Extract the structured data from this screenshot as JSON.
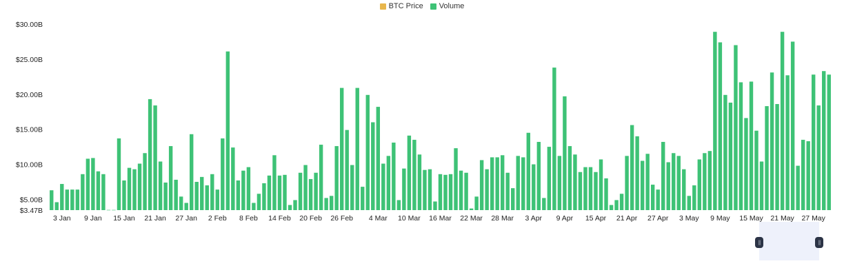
{
  "legend": [
    {
      "label": "BTC Price",
      "color": "#e8b64c"
    },
    {
      "label": "Volume",
      "color": "#3ec276"
    }
  ],
  "chart_data": {
    "type": "bar",
    "title": "",
    "xlabel": "",
    "ylabel": "",
    "ylim": [
      3.47,
      30
    ],
    "yticks": [
      {
        "value": 30,
        "label": "$30.00B"
      },
      {
        "value": 25,
        "label": "$25.00B"
      },
      {
        "value": 20,
        "label": "$20.00B"
      },
      {
        "value": 15,
        "label": "$15.00B"
      },
      {
        "value": 10,
        "label": "$10.00B"
      },
      {
        "value": 5,
        "label": "$5.00B"
      },
      {
        "value": 3.47,
        "label": "$3.47B"
      }
    ],
    "xticks": [
      {
        "index": 2,
        "label": "3 Jan"
      },
      {
        "index": 8,
        "label": "9 Jan"
      },
      {
        "index": 14,
        "label": "15 Jan"
      },
      {
        "index": 20,
        "label": "21 Jan"
      },
      {
        "index": 26,
        "label": "27 Jan"
      },
      {
        "index": 32,
        "label": "2 Feb"
      },
      {
        "index": 38,
        "label": "8 Feb"
      },
      {
        "index": 44,
        "label": "14 Feb"
      },
      {
        "index": 50,
        "label": "20 Feb"
      },
      {
        "index": 56,
        "label": "26 Feb"
      },
      {
        "index": 63,
        "label": "4 Mar"
      },
      {
        "index": 69,
        "label": "10 Mar"
      },
      {
        "index": 75,
        "label": "16 Mar"
      },
      {
        "index": 81,
        "label": "22 Mar"
      },
      {
        "index": 87,
        "label": "28 Mar"
      },
      {
        "index": 93,
        "label": "3 Apr"
      },
      {
        "index": 99,
        "label": "9 Apr"
      },
      {
        "index": 105,
        "label": "15 Apr"
      },
      {
        "index": 111,
        "label": "21 Apr"
      },
      {
        "index": 117,
        "label": "27 Apr"
      },
      {
        "index": 123,
        "label": "3 May"
      },
      {
        "index": 129,
        "label": "9 May"
      },
      {
        "index": 135,
        "label": "15 May"
      },
      {
        "index": 141,
        "label": "21 May"
      },
      {
        "index": 147,
        "label": "27 May"
      }
    ],
    "series": [
      {
        "name": "Volume",
        "color": "#3ec276",
        "values": [
          6.3,
          4.6,
          7.2,
          6.4,
          6.4,
          6.4,
          8.6,
          10.8,
          10.9,
          9.0,
          8.6,
          3.5,
          3.5,
          13.7,
          7.7,
          9.5,
          9.3,
          10.1,
          11.6,
          19.3,
          18.4,
          10.4,
          7.4,
          12.6,
          7.8,
          5.4,
          4.5,
          14.3,
          7.5,
          8.2,
          7.0,
          8.6,
          6.4,
          13.7,
          26.1,
          12.4,
          7.7,
          9.1,
          9.6,
          4.5,
          5.8,
          7.3,
          8.4,
          11.3,
          8.4,
          8.5,
          4.2,
          4.9,
          8.8,
          9.9,
          7.9,
          8.8,
          12.8,
          5.2,
          5.5,
          12.6,
          20.9,
          14.9,
          9.9,
          20.9,
          6.8,
          19.9,
          16.0,
          18.2,
          10.1,
          11.2,
          13.1,
          4.9,
          9.4,
          14.1,
          13.5,
          11.4,
          9.2,
          9.3,
          4.7,
          8.6,
          8.5,
          8.6,
          12.3,
          9.1,
          8.8,
          3.7,
          5.4,
          10.6,
          9.3,
          11.0,
          11.0,
          11.3,
          8.8,
          6.6,
          11.2,
          11.0,
          14.5,
          10.0,
          13.2,
          5.2,
          12.5,
          23.8,
          11.2,
          19.7,
          12.6,
          11.4,
          8.9,
          9.6,
          9.6,
          8.9,
          10.7,
          8.0,
          4.2,
          4.9,
          5.8,
          11.2,
          15.6,
          14.0,
          10.5,
          11.5,
          7.1,
          6.4,
          13.2,
          10.3,
          11.6,
          11.2,
          9.3,
          5.5,
          7.0,
          10.7,
          11.6,
          11.9,
          28.9,
          27.4,
          19.9,
          18.8,
          27.0,
          21.7,
          16.6,
          21.8,
          14.8,
          10.4,
          18.3,
          23.1,
          18.6,
          28.9,
          22.7,
          27.5,
          9.8,
          13.5,
          13.3,
          22.8,
          18.4,
          23.3,
          22.8
        ]
      }
    ]
  },
  "navigator": {
    "handle_left_icon": "grip-icon",
    "handle_right_icon": "grip-icon",
    "grip_glyph": "||"
  }
}
